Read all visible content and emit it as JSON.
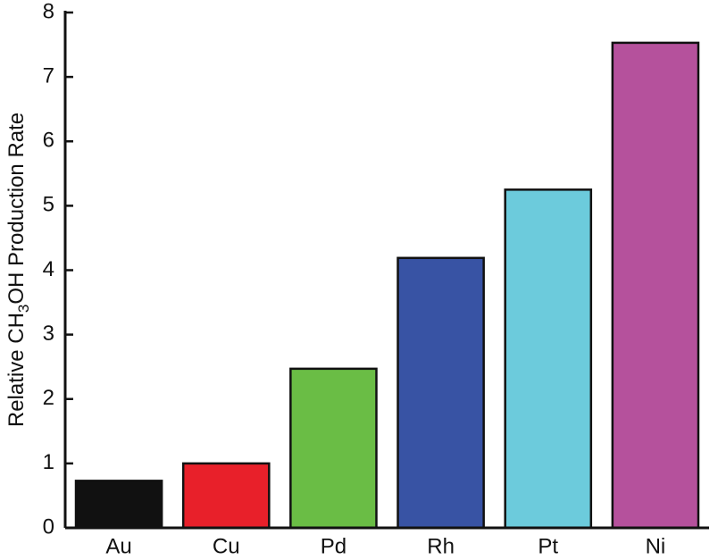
{
  "chart_data": {
    "type": "bar",
    "y_label": [
      "Relative CH",
      "3",
      "OH Production Rate"
    ],
    "categories": [
      "Au",
      "Cu",
      "Pd",
      "Rh",
      "Pt",
      "Ni"
    ],
    "values": [
      0.73,
      1.0,
      2.47,
      4.19,
      5.25,
      7.53
    ],
    "colors": [
      "#111111",
      "#e8202a",
      "#6abd45",
      "#3853a4",
      "#6ccbdc",
      "#b5519c"
    ],
    "ylim": [
      0,
      8
    ],
    "yticks": [
      0,
      1,
      2,
      3,
      4,
      5,
      6,
      7,
      8
    ],
    "grid": false
  }
}
